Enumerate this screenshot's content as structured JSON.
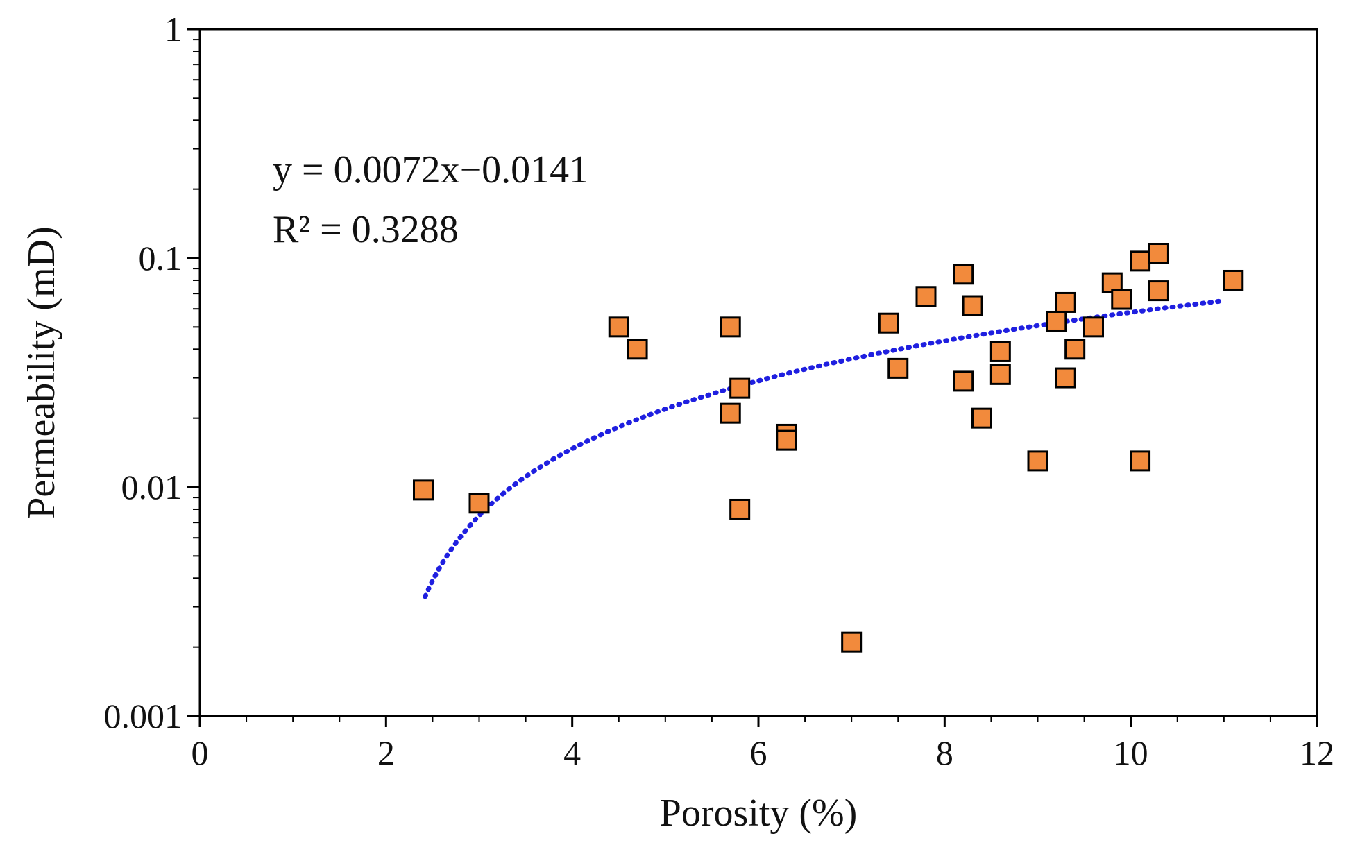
{
  "chart_data": {
    "type": "scatter",
    "xlabel": "Porosity (%)",
    "ylabel": "Permeability (mD)",
    "xlim": [
      0,
      12
    ],
    "ylim": [
      0.001,
      1
    ],
    "y_scale": "log",
    "grid": false,
    "x_ticks": [
      {
        "value": 0,
        "label": "0"
      },
      {
        "value": 2,
        "label": "2"
      },
      {
        "value": 4,
        "label": "4"
      },
      {
        "value": 6,
        "label": "6"
      },
      {
        "value": 8,
        "label": "8"
      },
      {
        "value": 10,
        "label": "10"
      },
      {
        "value": 12,
        "label": "12"
      }
    ],
    "y_ticks": [
      {
        "value": 0.001,
        "label": "0.001"
      },
      {
        "value": 0.01,
        "label": "0.01"
      },
      {
        "value": 0.1,
        "label": "0.1"
      },
      {
        "value": 1,
        "label": "1"
      }
    ],
    "series": [
      {
        "marker": "square",
        "color": "#f28a3c",
        "points": [
          {
            "x": 2.4,
            "y": 0.0097
          },
          {
            "x": 3.0,
            "y": 0.0085
          },
          {
            "x": 4.5,
            "y": 0.05
          },
          {
            "x": 4.7,
            "y": 0.04
          },
          {
            "x": 5.7,
            "y": 0.05
          },
          {
            "x": 5.7,
            "y": 0.021
          },
          {
            "x": 5.8,
            "y": 0.027
          },
          {
            "x": 5.8,
            "y": 0.008
          },
          {
            "x": 6.3,
            "y": 0.017
          },
          {
            "x": 6.3,
            "y": 0.016
          },
          {
            "x": 7.0,
            "y": 0.0021
          },
          {
            "x": 7.4,
            "y": 0.052
          },
          {
            "x": 7.5,
            "y": 0.033
          },
          {
            "x": 7.8,
            "y": 0.068
          },
          {
            "x": 8.2,
            "y": 0.085
          },
          {
            "x": 8.2,
            "y": 0.029
          },
          {
            "x": 8.3,
            "y": 0.062
          },
          {
            "x": 8.4,
            "y": 0.02
          },
          {
            "x": 8.6,
            "y": 0.039
          },
          {
            "x": 8.6,
            "y": 0.031
          },
          {
            "x": 9.0,
            "y": 0.013
          },
          {
            "x": 9.2,
            "y": 0.053
          },
          {
            "x": 9.3,
            "y": 0.064
          },
          {
            "x": 9.3,
            "y": 0.03
          },
          {
            "x": 9.4,
            "y": 0.04
          },
          {
            "x": 9.6,
            "y": 0.05
          },
          {
            "x": 9.8,
            "y": 0.078
          },
          {
            "x": 9.9,
            "y": 0.066
          },
          {
            "x": 10.1,
            "y": 0.097
          },
          {
            "x": 10.1,
            "y": 0.013
          },
          {
            "x": 10.3,
            "y": 0.105
          },
          {
            "x": 10.3,
            "y": 0.072
          },
          {
            "x": 11.1,
            "y": 0.08
          }
        ]
      }
    ],
    "trendline": {
      "type": "linear",
      "slope": 0.0072,
      "intercept": -0.0141,
      "x_range": [
        2.42,
        11.0
      ],
      "color": "#1f1fe0",
      "style": "dotted"
    },
    "annotations": [
      {
        "text": "y = 0.0072x−0.0141"
      },
      {
        "text": "R² = 0.3288"
      }
    ]
  }
}
